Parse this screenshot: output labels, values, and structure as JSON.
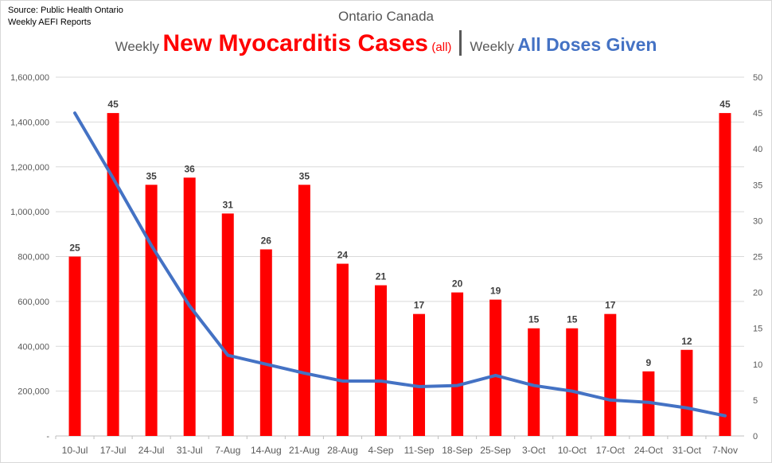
{
  "source": {
    "line1": "Source: Public Health Ontario",
    "line2": "Weekly AEFI Reports"
  },
  "title": {
    "region": "Ontario Canada",
    "prefix_weekly_1": "Weekly",
    "main_red": "New Myocarditis Cases",
    "paren": "(all)",
    "prefix_weekly_2": "Weekly",
    "main_blue": "All Doses Given"
  },
  "colors": {
    "bars": "#ff0000",
    "line": "#4472c4",
    "grid": "#d9d9d9",
    "tick_text": "#595959",
    "data_label": "#404040"
  },
  "chart_data": {
    "type": "bar",
    "categories": [
      "10-Jul",
      "17-Jul",
      "24-Jul",
      "31-Jul",
      "7-Aug",
      "14-Aug",
      "21-Aug",
      "28-Aug",
      "4-Sep",
      "11-Sep",
      "18-Sep",
      "25-Sep",
      "3-Oct",
      "10-Oct",
      "17-Oct",
      "24-Oct",
      "31-Oct",
      "7-Nov"
    ],
    "series": [
      {
        "type": "bar",
        "axis": "right",
        "values": [
          25,
          45,
          35,
          36,
          31,
          26,
          35,
          24,
          21,
          17,
          20,
          19,
          15,
          15,
          17,
          9,
          12,
          45
        ]
      },
      {
        "type": "line",
        "axis": "left",
        "values": [
          1440000,
          1150000,
          850000,
          580000,
          360000,
          320000,
          280000,
          245000,
          245000,
          220000,
          225000,
          270000,
          225000,
          200000,
          160000,
          150000,
          125000,
          90000
        ]
      }
    ],
    "y_left": {
      "ylim": [
        0,
        1600000
      ],
      "ticks": [
        "-",
        "200,000",
        "400,000",
        "600,000",
        "800,000",
        "1,000,000",
        "1,200,000",
        "1,400,000",
        "1,600,000"
      ]
    },
    "y_right": {
      "ylim": [
        0,
        50
      ],
      "ticks": [
        "0",
        "5",
        "10",
        "15",
        "20",
        "25",
        "30",
        "35",
        "40",
        "45",
        "50"
      ]
    },
    "grid": true,
    "data_labels": true
  }
}
